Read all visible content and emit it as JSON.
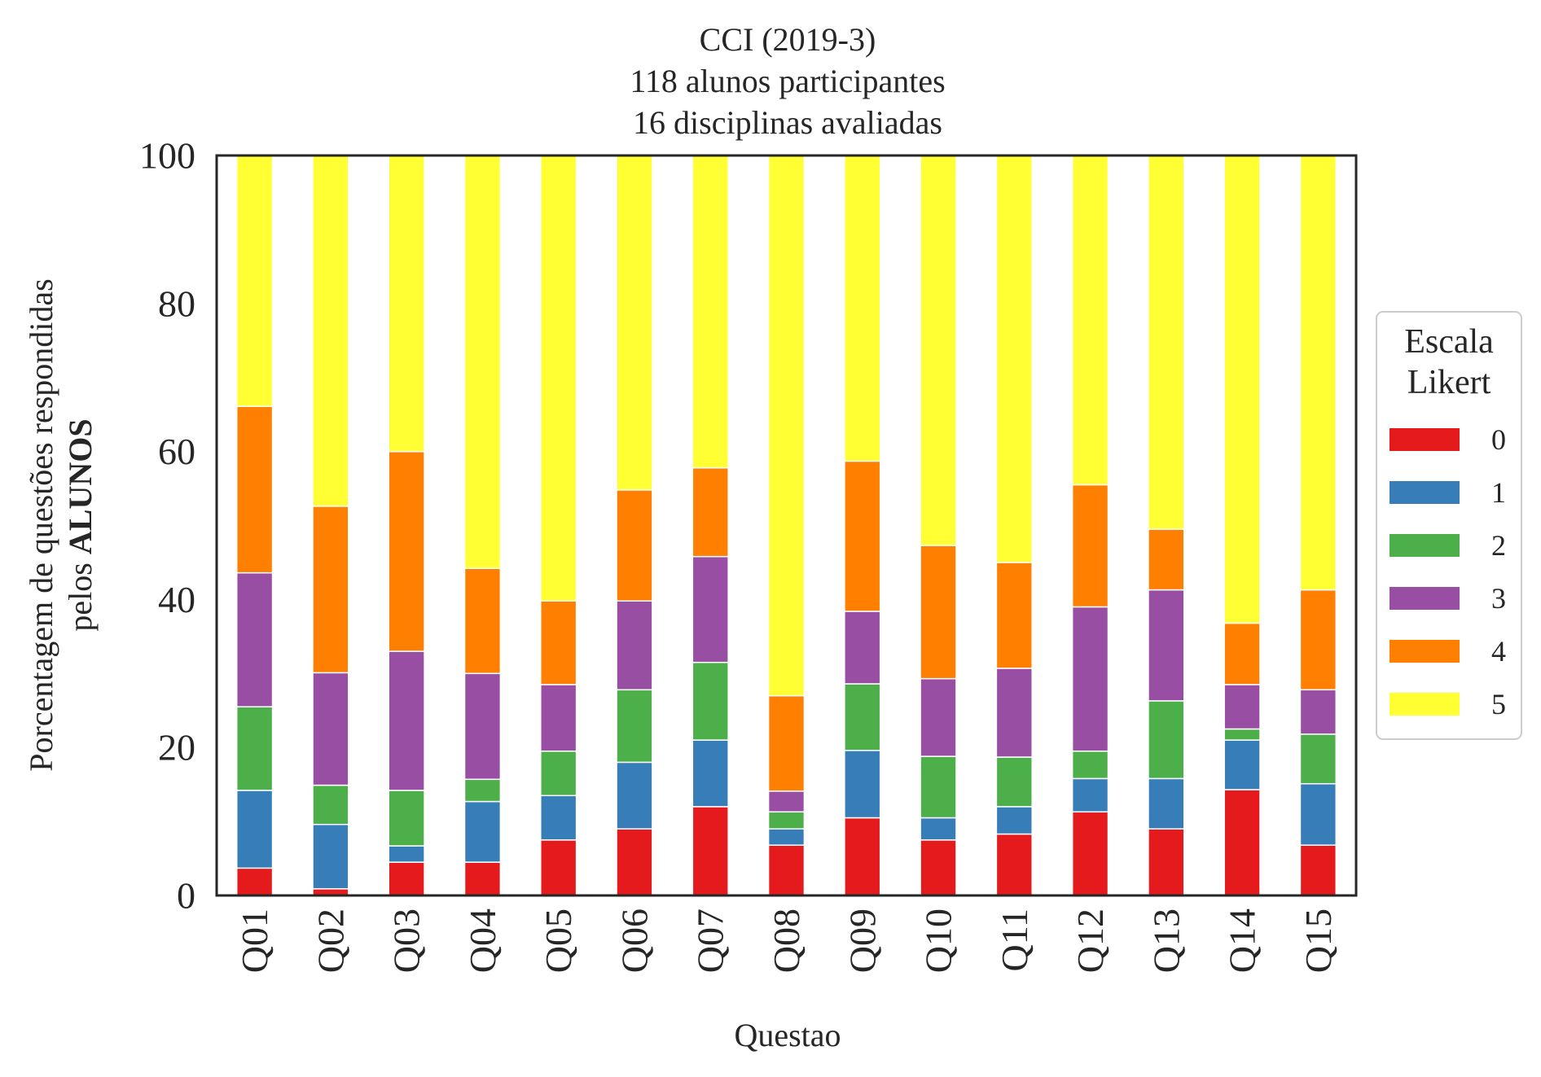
{
  "chart_data": {
    "type": "bar",
    "stacked": true,
    "title_lines": [
      "CCI (2019-3)",
      "118 alunos participantes",
      "16 disciplinas avaliadas"
    ],
    "xlabel": "Questao",
    "ylabel_line1": "Porcentagem de questões respondidas",
    "ylabel_line2_prefix": "pelos ",
    "ylabel_line2_bold": "ALUNOS",
    "ylim": [
      0,
      100
    ],
    "yticks": [
      0,
      20,
      40,
      60,
      80,
      100
    ],
    "grid": false,
    "legend_position": "right",
    "legend_title_lines": [
      "Escala",
      "Likert"
    ],
    "categories": [
      "Q01",
      "Q02",
      "Q03",
      "Q04",
      "Q05",
      "Q06",
      "Q07",
      "Q08",
      "Q09",
      "Q10",
      "Q11",
      "Q12",
      "Q13",
      "Q14",
      "Q15"
    ],
    "series": [
      {
        "name": "0",
        "color": "#e41a1c",
        "values": [
          3.7,
          0.9,
          4.5,
          4.5,
          7.5,
          9.0,
          12.0,
          6.8,
          10.5,
          7.5,
          8.3,
          11.3,
          9.0,
          14.3,
          6.8
        ]
      },
      {
        "name": "1",
        "color": "#377eb8",
        "values": [
          10.5,
          8.7,
          2.2,
          8.2,
          6.0,
          9.0,
          9.0,
          2.2,
          9.1,
          3.0,
          3.7,
          4.5,
          6.8,
          6.7,
          8.3
        ]
      },
      {
        "name": "2",
        "color": "#4daf4a",
        "values": [
          11.3,
          5.3,
          7.5,
          3.0,
          6.0,
          9.8,
          10.5,
          2.3,
          9.0,
          8.3,
          6.7,
          3.7,
          10.5,
          1.5,
          6.7
        ]
      },
      {
        "name": "3",
        "color": "#984ea3",
        "values": [
          18.1,
          15.2,
          18.8,
          14.3,
          9.0,
          12.0,
          14.3,
          2.8,
          9.8,
          10.5,
          12.0,
          19.5,
          15.0,
          6.0,
          6.0
        ]
      },
      {
        "name": "4",
        "color": "#ff7f00",
        "values": [
          22.5,
          22.5,
          27.0,
          14.2,
          11.3,
          15.0,
          12.0,
          12.9,
          20.3,
          18.0,
          14.3,
          16.5,
          8.2,
          8.3,
          13.5
        ]
      },
      {
        "name": "5",
        "color": "#ffff33",
        "values": [
          33.9,
          47.4,
          40.0,
          55.8,
          60.2,
          45.2,
          42.2,
          73.0,
          41.3,
          52.7,
          55.0,
          44.5,
          50.5,
          63.2,
          58.7
        ]
      }
    ]
  }
}
